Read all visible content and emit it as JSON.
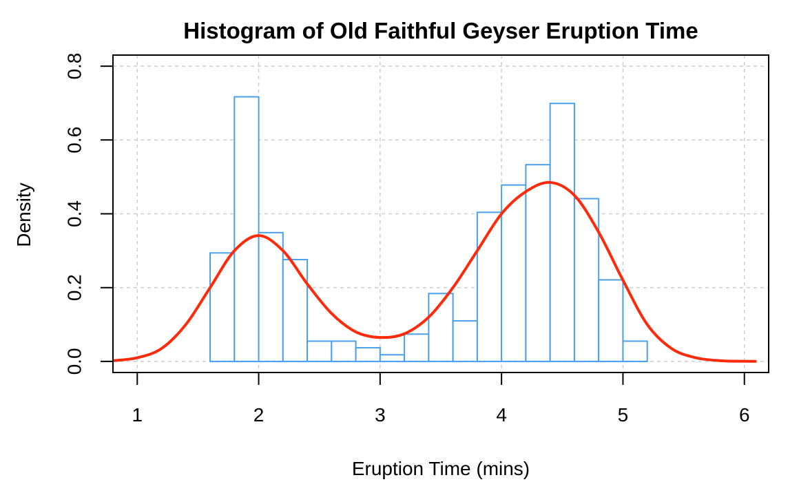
{
  "chart_data": {
    "type": "bar",
    "title": "Histogram of Old Faithful Geyser Eruption Time",
    "xlabel": "Eruption Time (mins)",
    "ylabel": "Density",
    "xlim": [
      0.8,
      6.2
    ],
    "ylim": [
      -0.03,
      0.83
    ],
    "x_ticks": [
      1,
      2,
      3,
      4,
      5,
      6
    ],
    "x_tick_labels": [
      "1",
      "2",
      "3",
      "4",
      "5",
      "6"
    ],
    "y_ticks": [
      0.0,
      0.2,
      0.4,
      0.6,
      0.8
    ],
    "y_tick_labels": [
      "0.0",
      "0.2",
      "0.4",
      "0.6",
      "0.8"
    ],
    "grid": true,
    "bins": [
      {
        "start": 1.6,
        "end": 1.8,
        "density": 0.294
      },
      {
        "start": 1.8,
        "end": 2.0,
        "density": 0.717
      },
      {
        "start": 2.0,
        "end": 2.2,
        "density": 0.349
      },
      {
        "start": 2.2,
        "end": 2.4,
        "density": 0.276
      },
      {
        "start": 2.4,
        "end": 2.6,
        "density": 0.055
      },
      {
        "start": 2.6,
        "end": 2.8,
        "density": 0.055
      },
      {
        "start": 2.8,
        "end": 3.0,
        "density": 0.037
      },
      {
        "start": 3.0,
        "end": 3.2,
        "density": 0.018
      },
      {
        "start": 3.2,
        "end": 3.4,
        "density": 0.074
      },
      {
        "start": 3.4,
        "end": 3.6,
        "density": 0.184
      },
      {
        "start": 3.6,
        "end": 3.8,
        "density": 0.11
      },
      {
        "start": 3.8,
        "end": 4.0,
        "density": 0.404
      },
      {
        "start": 4.0,
        "end": 4.2,
        "density": 0.478
      },
      {
        "start": 4.2,
        "end": 4.4,
        "density": 0.533
      },
      {
        "start": 4.4,
        "end": 4.6,
        "density": 0.699
      },
      {
        "start": 4.6,
        "end": 4.8,
        "density": 0.441
      },
      {
        "start": 4.8,
        "end": 5.0,
        "density": 0.221
      },
      {
        "start": 5.0,
        "end": 5.2,
        "density": 0.055
      }
    ],
    "density_curve": {
      "x": [
        0.8,
        1.0,
        1.2,
        1.4,
        1.6,
        1.8,
        2.0,
        2.2,
        2.4,
        2.6,
        2.8,
        3.0,
        3.2,
        3.4,
        3.6,
        3.8,
        4.0,
        4.2,
        4.4,
        4.6,
        4.8,
        5.0,
        5.2,
        5.4,
        5.6,
        5.8,
        6.0,
        6.1
      ],
      "y": [
        0.002,
        0.01,
        0.035,
        0.1,
        0.2,
        0.3,
        0.341,
        0.3,
        0.21,
        0.13,
        0.08,
        0.065,
        0.075,
        0.12,
        0.2,
        0.3,
        0.4,
        0.46,
        0.485,
        0.45,
        0.35,
        0.22,
        0.1,
        0.035,
        0.01,
        0.002,
        0.0005,
        0.0002
      ]
    },
    "colors": {
      "bars": "#4aa0ec",
      "density_line": "#ff2a0a",
      "grid": "#d0d0d0",
      "frame": "#000000"
    }
  }
}
